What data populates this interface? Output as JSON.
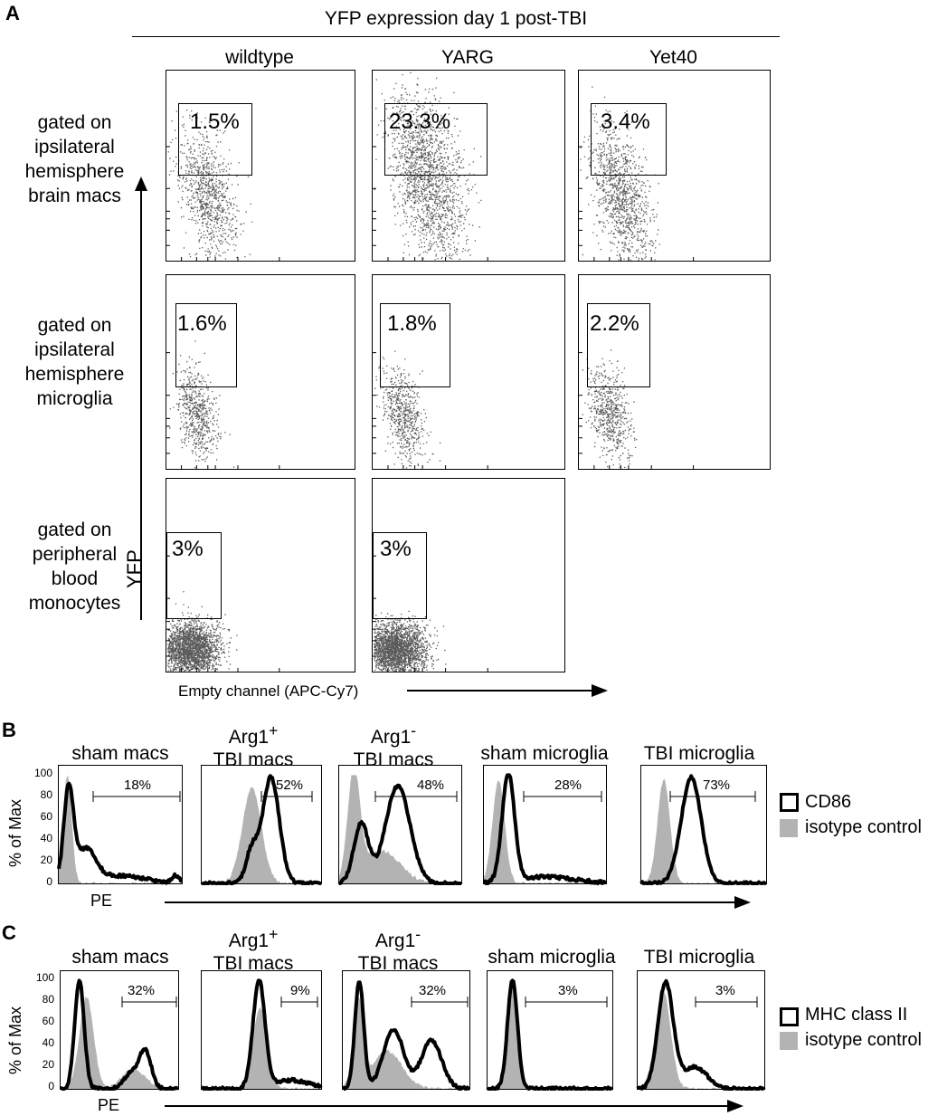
{
  "panels": {
    "a": "A",
    "b": "B",
    "c": "C"
  },
  "panel_a": {
    "title": "YFP expression day 1 post-TBI",
    "columns": [
      "wildtype",
      "YARG",
      "Yet40"
    ],
    "rows": [
      [
        "gated on",
        "ipsilateral",
        "hemisphere",
        "brain macs"
      ],
      [
        "gated on",
        "ipsilateral",
        "hemisphere",
        "microglia"
      ],
      [
        "gated on",
        "peripheral",
        "blood",
        "monocytes"
      ]
    ],
    "y_axis_label": "YFP",
    "x_axis_label": "Empty channel (APC-Cy7)",
    "gates": [
      [
        "1.5%",
        "23.3%",
        "3.4%"
      ],
      [
        "1.6%",
        "1.8%",
        "2.2%"
      ],
      [
        "3%",
        "3%"
      ]
    ]
  },
  "panel_b": {
    "groups": [
      {
        "line1": "",
        "line2": "sham macs"
      },
      {
        "line1": "Arg1",
        "sup": "+",
        "line2": "TBI macs"
      },
      {
        "line1": "Arg1",
        "sup": "-",
        "line2": "TBI macs"
      },
      {
        "line1": "",
        "line2": "sham microglia"
      },
      {
        "line1": "",
        "line2": "TBI microglia"
      }
    ],
    "percents": [
      "18%",
      "52%",
      "48%",
      "28%",
      "73%"
    ],
    "y_axis_label": "% of Max",
    "y_ticks": [
      "100",
      "80",
      "60",
      "40",
      "20",
      "0"
    ],
    "x_axis_label": "PE",
    "legend": {
      "marker": "CD86",
      "control": "isotype control"
    }
  },
  "panel_c": {
    "groups": [
      {
        "line1": "",
        "line2": "sham macs"
      },
      {
        "line1": "Arg1",
        "sup": "+",
        "line2": "TBI macs"
      },
      {
        "line1": "Arg1",
        "sup": "-",
        "line2": "TBI macs"
      },
      {
        "line1": "",
        "line2": "sham microglia"
      },
      {
        "line1": "",
        "line2": "TBI microglia"
      }
    ],
    "percents": [
      "32%",
      "9%",
      "32%",
      "3%",
      "3%"
    ],
    "y_axis_label": "% of Max",
    "y_ticks": [
      "100",
      "80",
      "60",
      "40",
      "20",
      "0"
    ],
    "x_axis_label": "PE",
    "legend": {
      "marker": "MHC class II",
      "control": "isotype control"
    }
  },
  "colors": {
    "ink": "#000000",
    "fill": "#b3b3b3",
    "dots": "#5a5a5a"
  },
  "chart_data": [
    {
      "type": "scatter",
      "title": "YFP expression day 1 post-TBI",
      "xlabel": "Empty channel (APC-Cy7)",
      "ylabel": "YFP",
      "gate_percentages": {
        "brain macs": {
          "wildtype": 1.5,
          "YARG": 23.3,
          "Yet40": 3.4
        },
        "microglia": {
          "wildtype": 1.6,
          "YARG": 1.8,
          "Yet40": 2.2
        },
        "monocytes": {
          "wildtype": 3,
          "YARG": 3
        }
      }
    },
    {
      "type": "area",
      "ylabel": "% of Max",
      "xlabel": "PE",
      "ylim": [
        0,
        100
      ],
      "series_names": [
        "CD86",
        "isotype control"
      ],
      "categories": [
        "sham macs",
        "Arg1+ TBI macs",
        "Arg1- TBI macs",
        "sham microglia",
        "TBI microglia"
      ],
      "gated_percent": [
        18,
        52,
        48,
        28,
        73
      ]
    },
    {
      "type": "area",
      "ylabel": "% of Max",
      "xlabel": "PE",
      "ylim": [
        0,
        100
      ],
      "series_names": [
        "MHC class II",
        "isotype control"
      ],
      "categories": [
        "sham macs",
        "Arg1+ TBI macs",
        "Arg1- TBI macs",
        "sham microglia",
        "TBI microglia"
      ],
      "gated_percent": [
        32,
        9,
        32,
        3,
        3
      ]
    }
  ]
}
